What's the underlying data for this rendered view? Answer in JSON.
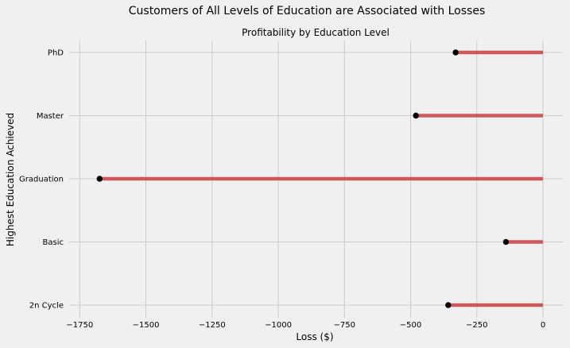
{
  "colors": {
    "background": "#f0f0f0",
    "grid": "#cbcbcb",
    "stem": "#d1585a",
    "marker": "#000000"
  },
  "chart_data": {
    "type": "lollipop",
    "orientation": "horizontal",
    "suptitle": "Customers of All Levels of Education are Associated with Losses",
    "title": "Profitability by Education Level",
    "xlabel": "Loss ($)",
    "ylabel": "Highest Education Achieved",
    "xlim": [
      -1790,
      75
    ],
    "x_ticks": [
      -1750,
      -1500,
      -1250,
      -1000,
      -750,
      -500,
      -250,
      0
    ],
    "x_tick_labels": [
      "−1750",
      "−1500",
      "−1250",
      "−1000",
      "−750",
      "−500",
      "−250",
      "0"
    ],
    "grid": true,
    "categories": [
      "2n Cycle",
      "Basic",
      "Graduation",
      "Master",
      "PhD"
    ],
    "values": [
      -358,
      -140,
      -1675,
      -480,
      -330
    ]
  }
}
